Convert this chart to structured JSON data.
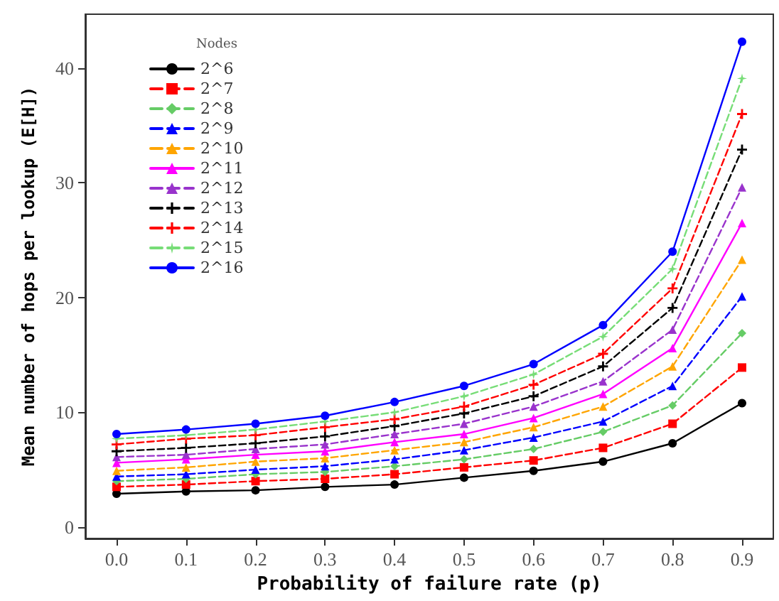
{
  "chart_data": {
    "type": "line",
    "xlabel": "Probability of failure rate (p)",
    "ylabel": "Mean number of hops per lookup (E[H])",
    "legend_title": "Nodes",
    "legend": "top left",
    "grid": false,
    "x": [
      0,
      0.1,
      0.2,
      0.3,
      0.4,
      0.5,
      0.6,
      0.7,
      0.8,
      0.9
    ],
    "xlim": [
      -0.045,
      0.945
    ],
    "xticks": [
      {
        "value": 0,
        "label": "0.0"
      },
      {
        "value": 0.1,
        "label": "0.1"
      },
      {
        "value": 0.2,
        "label": "0.2"
      },
      {
        "value": 0.3,
        "label": "0.3"
      },
      {
        "value": 0.4,
        "label": "0.4"
      },
      {
        "value": 0.5,
        "label": "0.5"
      },
      {
        "value": 0.6,
        "label": "0.6"
      },
      {
        "value": 0.7,
        "label": "0.7"
      },
      {
        "value": 0.8,
        "label": "0.8"
      },
      {
        "value": 0.9,
        "label": "0.9"
      }
    ],
    "ylim": [
      -1,
      44.7
    ],
    "yticks": [
      0,
      10,
      20,
      30,
      40
    ],
    "series": [
      {
        "name": "2^6",
        "color": "#000000",
        "marker": "circle",
        "line_style": "solid",
        "values": [
          2.9,
          3.1,
          3.2,
          3.5,
          3.7,
          4.3,
          4.9,
          5.7,
          7.3,
          10.8
        ]
      },
      {
        "name": "2^7",
        "color": "#ff0000",
        "marker": "square",
        "line_style": "dashed",
        "values": [
          3.5,
          3.7,
          4.0,
          4.2,
          4.6,
          5.2,
          5.8,
          6.9,
          9.0,
          13.9
        ]
      },
      {
        "name": "2^8",
        "color": "#66cc66",
        "marker": "diamond",
        "line_style": "dashed",
        "values": [
          4.0,
          4.2,
          4.6,
          4.8,
          5.3,
          5.9,
          6.8,
          8.3,
          10.6,
          16.9
        ]
      },
      {
        "name": "2^9",
        "color": "#0000ff",
        "marker": "triangle",
        "line_style": "dashed",
        "values": [
          4.4,
          4.6,
          5.0,
          5.3,
          5.9,
          6.7,
          7.8,
          9.2,
          12.3,
          20.1
        ]
      },
      {
        "name": "2^10",
        "color": "#ffa500",
        "marker": "triangle",
        "line_style": "dashed",
        "values": [
          4.9,
          5.2,
          5.7,
          6.0,
          6.7,
          7.4,
          8.7,
          10.5,
          14.0,
          23.3
        ]
      },
      {
        "name": "2^11",
        "color": "#ff00ff",
        "marker": "triangle",
        "line_style": "solid",
        "values": [
          5.6,
          5.9,
          6.3,
          6.6,
          7.4,
          8.1,
          9.5,
          11.6,
          15.6,
          26.5
        ]
      },
      {
        "name": "2^12",
        "color": "#9933cc",
        "marker": "triangle",
        "line_style": "dashed",
        "values": [
          6.1,
          6.3,
          6.8,
          7.2,
          8.1,
          9.0,
          10.5,
          12.7,
          17.2,
          29.6
        ]
      },
      {
        "name": "2^13",
        "color": "#000000",
        "marker": "cross",
        "line_style": "dashed",
        "values": [
          6.6,
          6.9,
          7.3,
          7.9,
          8.8,
          9.9,
          11.4,
          14.0,
          19.1,
          32.9
        ]
      },
      {
        "name": "2^14",
        "color": "#ff0000",
        "marker": "cross",
        "line_style": "dashed",
        "values": [
          7.2,
          7.7,
          8.0,
          8.7,
          9.4,
          10.5,
          12.4,
          15.1,
          20.8,
          36.0
        ]
      },
      {
        "name": "2^15",
        "color": "#77dd77",
        "marker": "star",
        "line_style": "dashed",
        "values": [
          7.7,
          8.0,
          8.5,
          9.2,
          10.0,
          11.4,
          13.3,
          16.6,
          22.5,
          39.1
        ]
      },
      {
        "name": "2^16",
        "color": "#0000ff",
        "marker": "circle",
        "line_style": "solid",
        "values": [
          8.1,
          8.5,
          9.0,
          9.7,
          10.9,
          12.3,
          14.2,
          17.6,
          24.0,
          42.3
        ]
      }
    ]
  }
}
